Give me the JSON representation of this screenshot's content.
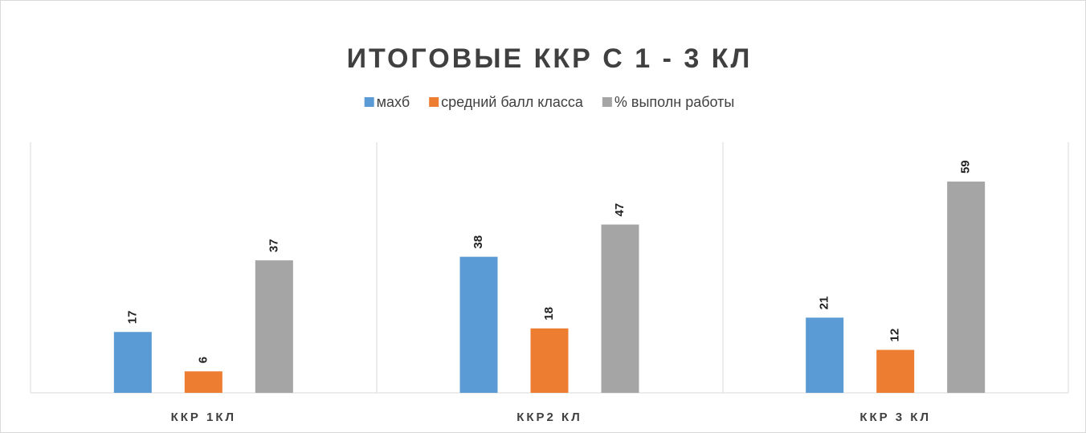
{
  "chart_data": {
    "type": "bar",
    "title": "ИТОГОВЫЕ ККР С 1 - 3 КЛ",
    "categories": [
      "ККР 1КЛ",
      "ККР2 КЛ",
      "ККР 3 КЛ"
    ],
    "series": [
      {
        "name": "махб",
        "color": "#5b9bd5",
        "values": [
          17,
          38,
          21
        ]
      },
      {
        "name": "средний балл класса",
        "color": "#ed7d31",
        "values": [
          6,
          18,
          12
        ]
      },
      {
        "name": "% выполн работы",
        "color": "#a5a5a5",
        "values": [
          37,
          47,
          59
        ]
      }
    ],
    "ylim": [
      0,
      70
    ]
  }
}
